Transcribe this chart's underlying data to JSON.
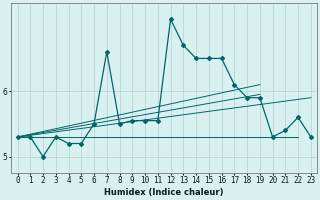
{
  "xlabel": "Humidex (Indice chaleur)",
  "background_color": "#d8f0f0",
  "grid_color": "#b8d8d8",
  "line_color": "#006666",
  "x_values": [
    0,
    1,
    2,
    3,
    4,
    5,
    6,
    7,
    8,
    9,
    10,
    11,
    12,
    13,
    14,
    15,
    16,
    17,
    18,
    19,
    20,
    21,
    22,
    23
  ],
  "y_main": [
    5.3,
    5.3,
    5.0,
    5.3,
    5.2,
    5.2,
    5.5,
    6.6,
    5.5,
    5.55,
    5.55,
    5.55,
    7.1,
    6.7,
    6.5,
    6.5,
    6.5,
    6.1,
    5.9,
    5.9,
    5.3,
    5.4,
    5.6,
    5.3
  ],
  "y_flat": [
    5.3,
    5.3,
    5.3,
    5.3,
    5.3,
    5.3,
    5.3,
    5.3,
    5.3,
    5.3,
    5.3,
    5.3,
    5.3,
    5.3,
    5.3,
    5.3,
    5.3,
    5.3,
    5.3,
    5.3,
    5.3,
    5.3,
    5.3
  ],
  "x_flat": [
    0,
    1,
    2,
    3,
    4,
    5,
    6,
    7,
    8,
    9,
    10,
    11,
    12,
    13,
    14,
    15,
    16,
    17,
    18,
    19,
    20,
    21,
    22
  ],
  "trend1_x": [
    0,
    23
  ],
  "trend1_y": [
    5.3,
    5.9
  ],
  "trend2_x": [
    0,
    19
  ],
  "trend2_y": [
    5.3,
    5.95
  ],
  "trend3_x": [
    0,
    19
  ],
  "trend3_y": [
    5.3,
    6.1
  ],
  "ylim": [
    4.75,
    7.35
  ],
  "yticks": [
    5,
    6
  ],
  "xlim": [
    -0.5,
    23.5
  ]
}
